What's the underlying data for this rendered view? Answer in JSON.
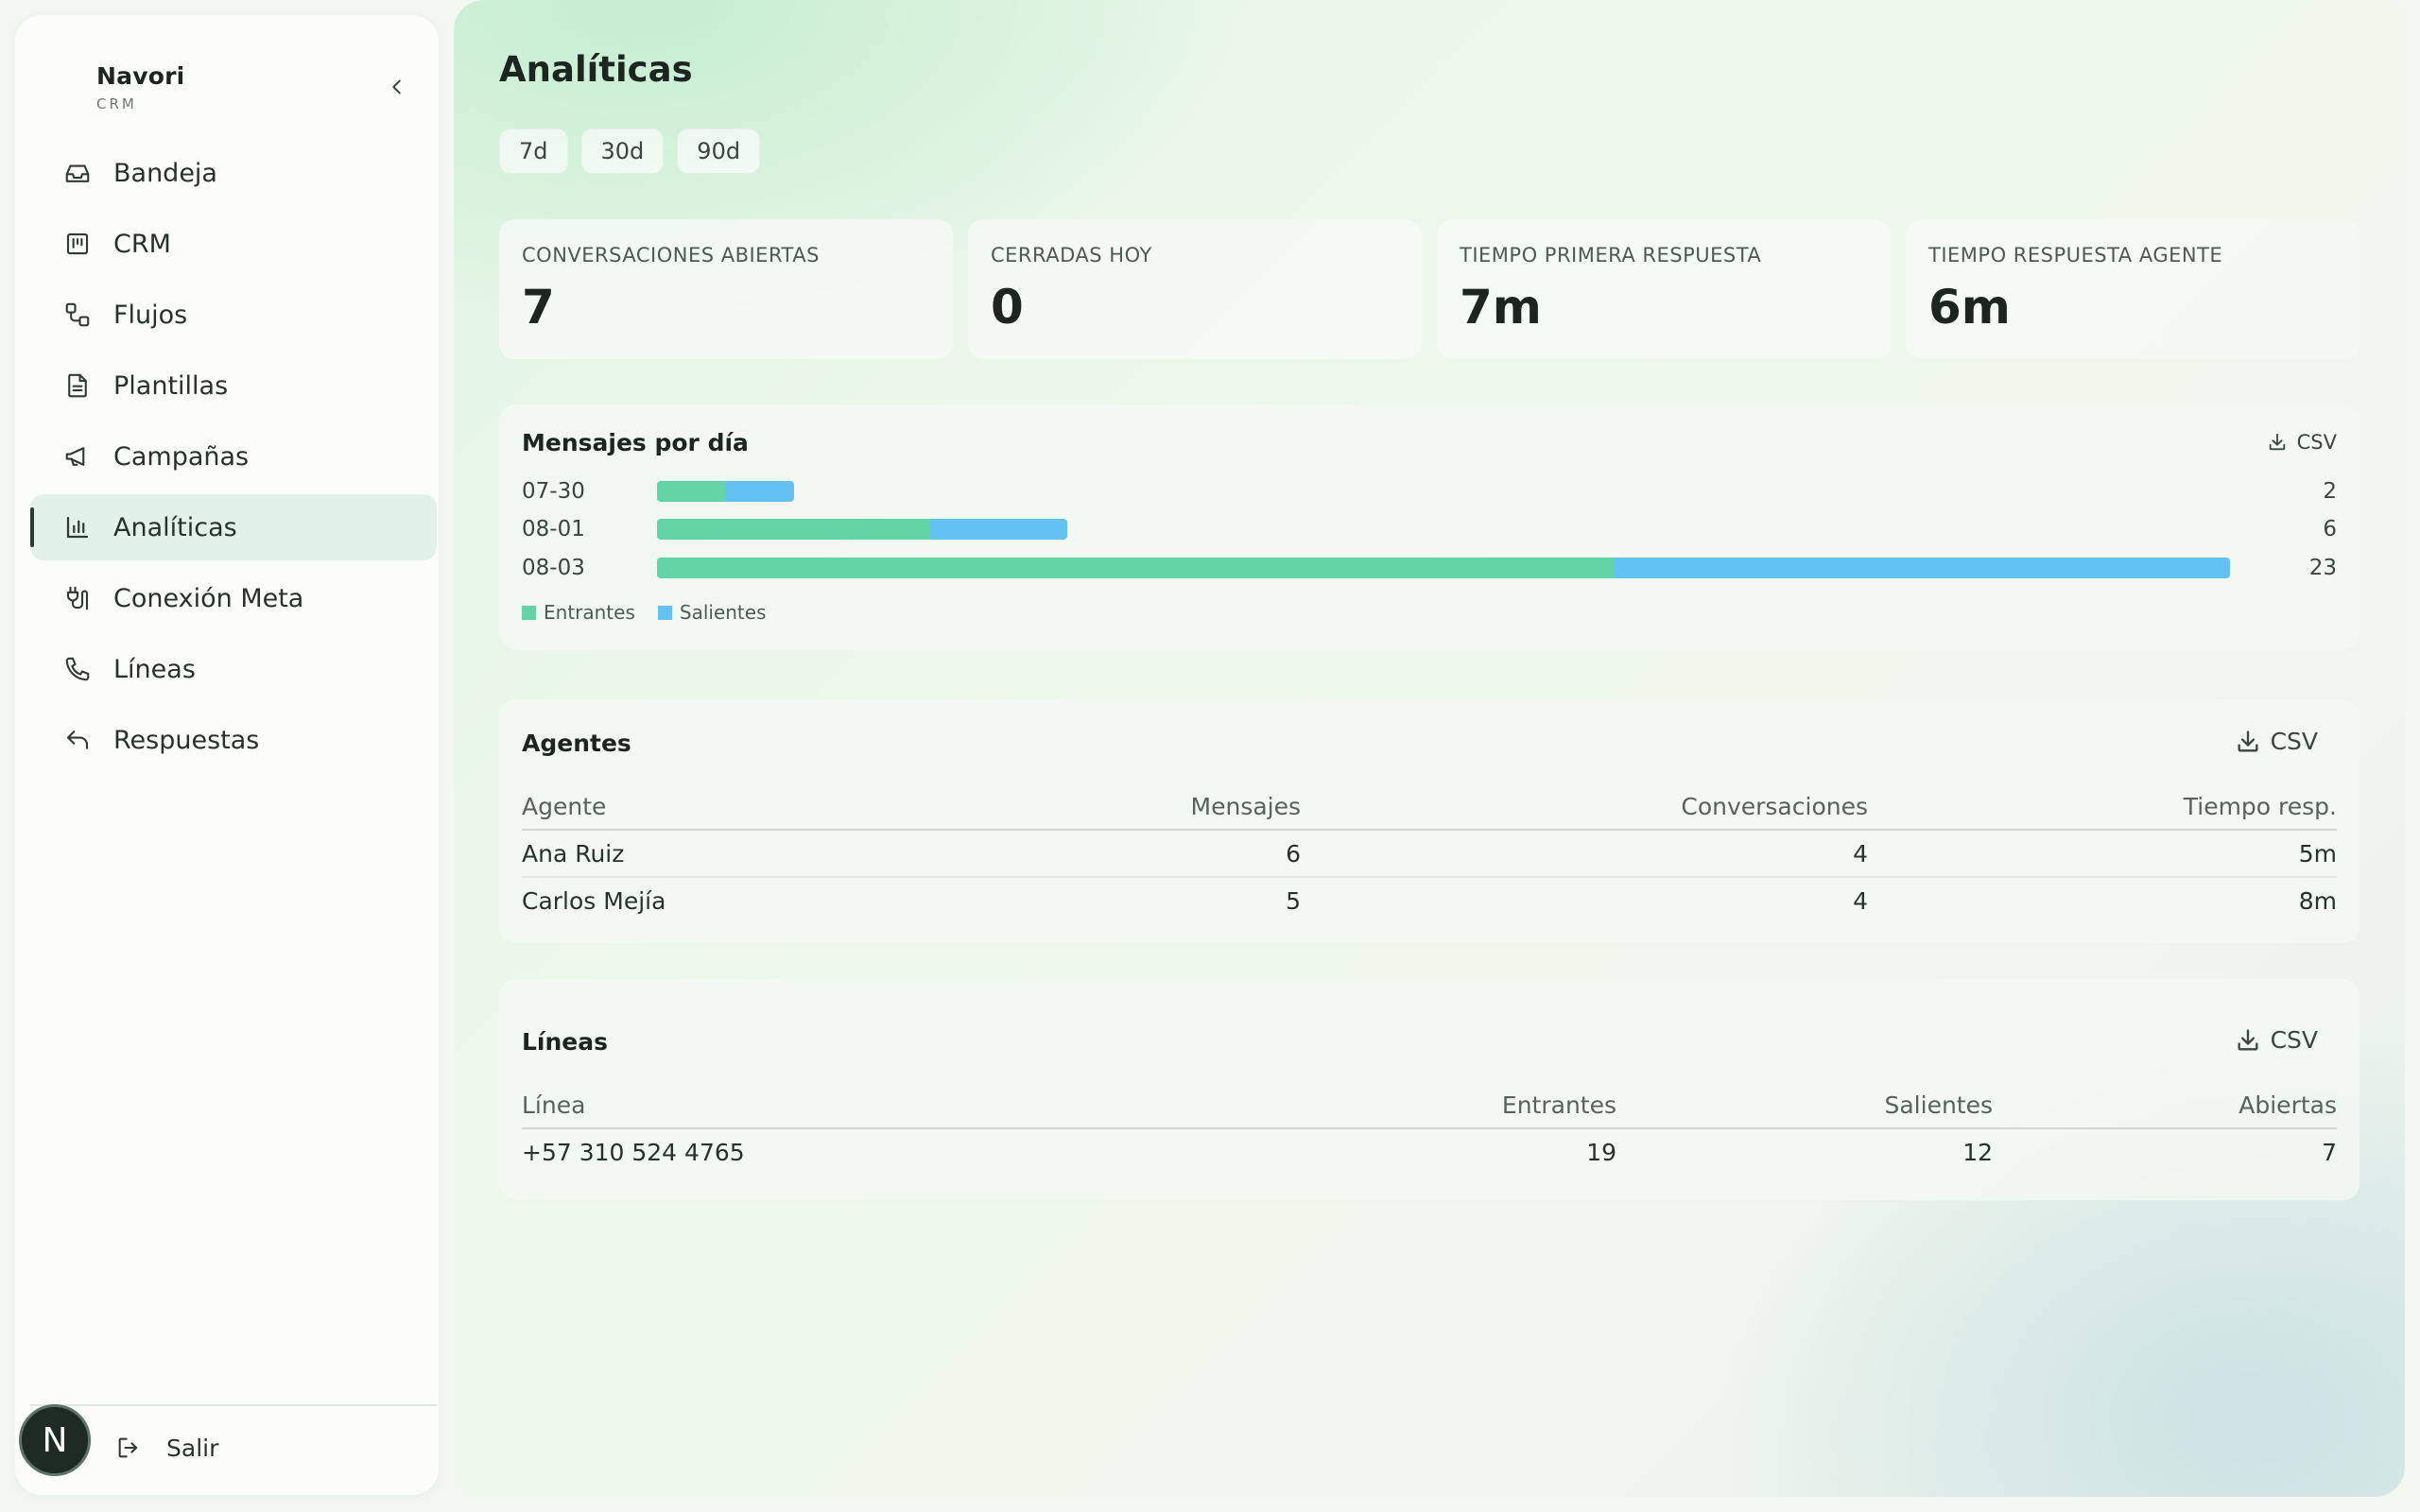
{
  "sidebar": {
    "brand_name": "Navori",
    "brand_sub": "CRM",
    "items": [
      {
        "label": "Bandeja",
        "icon": "inbox-icon"
      },
      {
        "label": "CRM",
        "icon": "kanban-icon"
      },
      {
        "label": "Flujos",
        "icon": "workflow-icon"
      },
      {
        "label": "Plantillas",
        "icon": "file-text-icon"
      },
      {
        "label": "Campañas",
        "icon": "megaphone-icon"
      },
      {
        "label": "Analíticas",
        "icon": "bar-chart-icon",
        "active": true
      },
      {
        "label": "Conexión Meta",
        "icon": "plug-icon"
      },
      {
        "label": "Líneas",
        "icon": "phone-icon"
      },
      {
        "label": "Respuestas",
        "icon": "reply-icon"
      }
    ],
    "avatar_letter": "N",
    "logout_label": "Salir"
  },
  "page": {
    "title": "Analíticas",
    "ranges": [
      "7d",
      "30d",
      "90d"
    ]
  },
  "kpis": [
    {
      "label": "CONVERSACIONES ABIERTAS",
      "value": "7"
    },
    {
      "label": "CERRADAS HOY",
      "value": "0"
    },
    {
      "label": "TIEMPO PRIMERA RESPUESTA",
      "value": "7m"
    },
    {
      "label": "TIEMPO RESPUESTA AGENTE",
      "value": "6m"
    }
  ],
  "messages_card": {
    "title": "Mensajes por día",
    "csv_label": "CSV",
    "legend": {
      "incoming": "Entrantes",
      "outgoing": "Salientes"
    },
    "colors": {
      "incoming": "#62d4a6",
      "outgoing": "#63c2f2"
    }
  },
  "chart_data": {
    "type": "bar",
    "orientation": "horizontal-stacked",
    "categories": [
      "07-30",
      "08-01",
      "08-03"
    ],
    "series": [
      {
        "name": "Entrantes",
        "values": [
          1,
          4,
          14
        ]
      },
      {
        "name": "Salientes",
        "values": [
          1,
          2,
          9
        ]
      }
    ],
    "totals": [
      "2",
      "6",
      "23"
    ],
    "legend_position": "bottom-left"
  },
  "agents_card": {
    "title": "Agentes",
    "csv_label": "CSV",
    "columns": [
      "Agente",
      "Mensajes",
      "Conversaciones",
      "Tiempo resp."
    ],
    "rows": [
      [
        "Ana Ruiz",
        "6",
        "4",
        "5m"
      ],
      [
        "Carlos Mejía",
        "5",
        "4",
        "8m"
      ]
    ]
  },
  "lines_card": {
    "title": "Líneas",
    "csv_label": "CSV",
    "columns": [
      "Línea",
      "Entrantes",
      "Salientes",
      "Abiertas"
    ],
    "rows": [
      [
        "+57 310 524 4765",
        "19",
        "12",
        "7"
      ]
    ]
  }
}
